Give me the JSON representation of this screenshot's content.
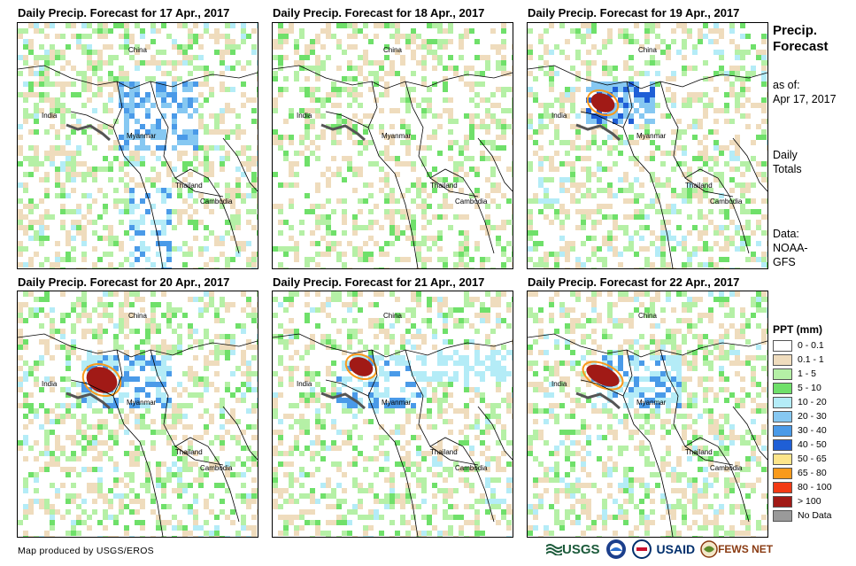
{
  "panels": [
    {
      "title": "Daily Precip. Forecast for 17 Apr., 2017"
    },
    {
      "title": "Daily Precip. Forecast for 18 Apr., 2017"
    },
    {
      "title": "Daily Precip. Forecast for 19 Apr., 2017"
    },
    {
      "title": "Daily Precip. Forecast for 20 Apr., 2017"
    },
    {
      "title": "Daily Precip. Forecast for 21 Apr., 2017"
    },
    {
      "title": "Daily Precip. Forecast for 22 Apr., 2017"
    }
  ],
  "map_labels": {
    "china": "China",
    "india": "India",
    "myanmar": "Myanmar",
    "thailand": "Thailand",
    "cambodia": "Cambodia"
  },
  "side": {
    "title_line1": "Precip.",
    "title_line2": "Forecast",
    "asof_line1": "as of:",
    "asof_line2": "Apr 17, 2017",
    "totals_line1": "Daily",
    "totals_line2": "Totals",
    "data_line1": "Data:",
    "data_line2": "NOAA-",
    "data_line3": "GFS"
  },
  "legend": {
    "title": "PPT (mm)",
    "items": [
      {
        "label": "0 - 0.1",
        "color": "#ffffff"
      },
      {
        "label": "0.1 - 1",
        "color": "#efdcbd"
      },
      {
        "label": "1 - 5",
        "color": "#b5f0a6"
      },
      {
        "label": "5 - 10",
        "color": "#6fe06a"
      },
      {
        "label": "10 - 20",
        "color": "#b4ecf7"
      },
      {
        "label": "20 - 30",
        "color": "#86c8f2"
      },
      {
        "label": "30 - 40",
        "color": "#4a9ae8"
      },
      {
        "label": "40 - 50",
        "color": "#1f5fd6"
      },
      {
        "label": "50 - 65",
        "color": "#fde58a"
      },
      {
        "label": "65 - 80",
        "color": "#f99a1c"
      },
      {
        "label": "80 - 100",
        "color": "#f23a14"
      },
      {
        "label": "> 100",
        "color": "#a11a16"
      },
      {
        "label": "No Data",
        "color": "#9a9a9a"
      }
    ]
  },
  "footer": {
    "credit": "Map produced by USGS/EROS"
  },
  "logos": {
    "usgs": "USGS",
    "usaid": "USAID",
    "fewsnet": "FEWS NET"
  }
}
